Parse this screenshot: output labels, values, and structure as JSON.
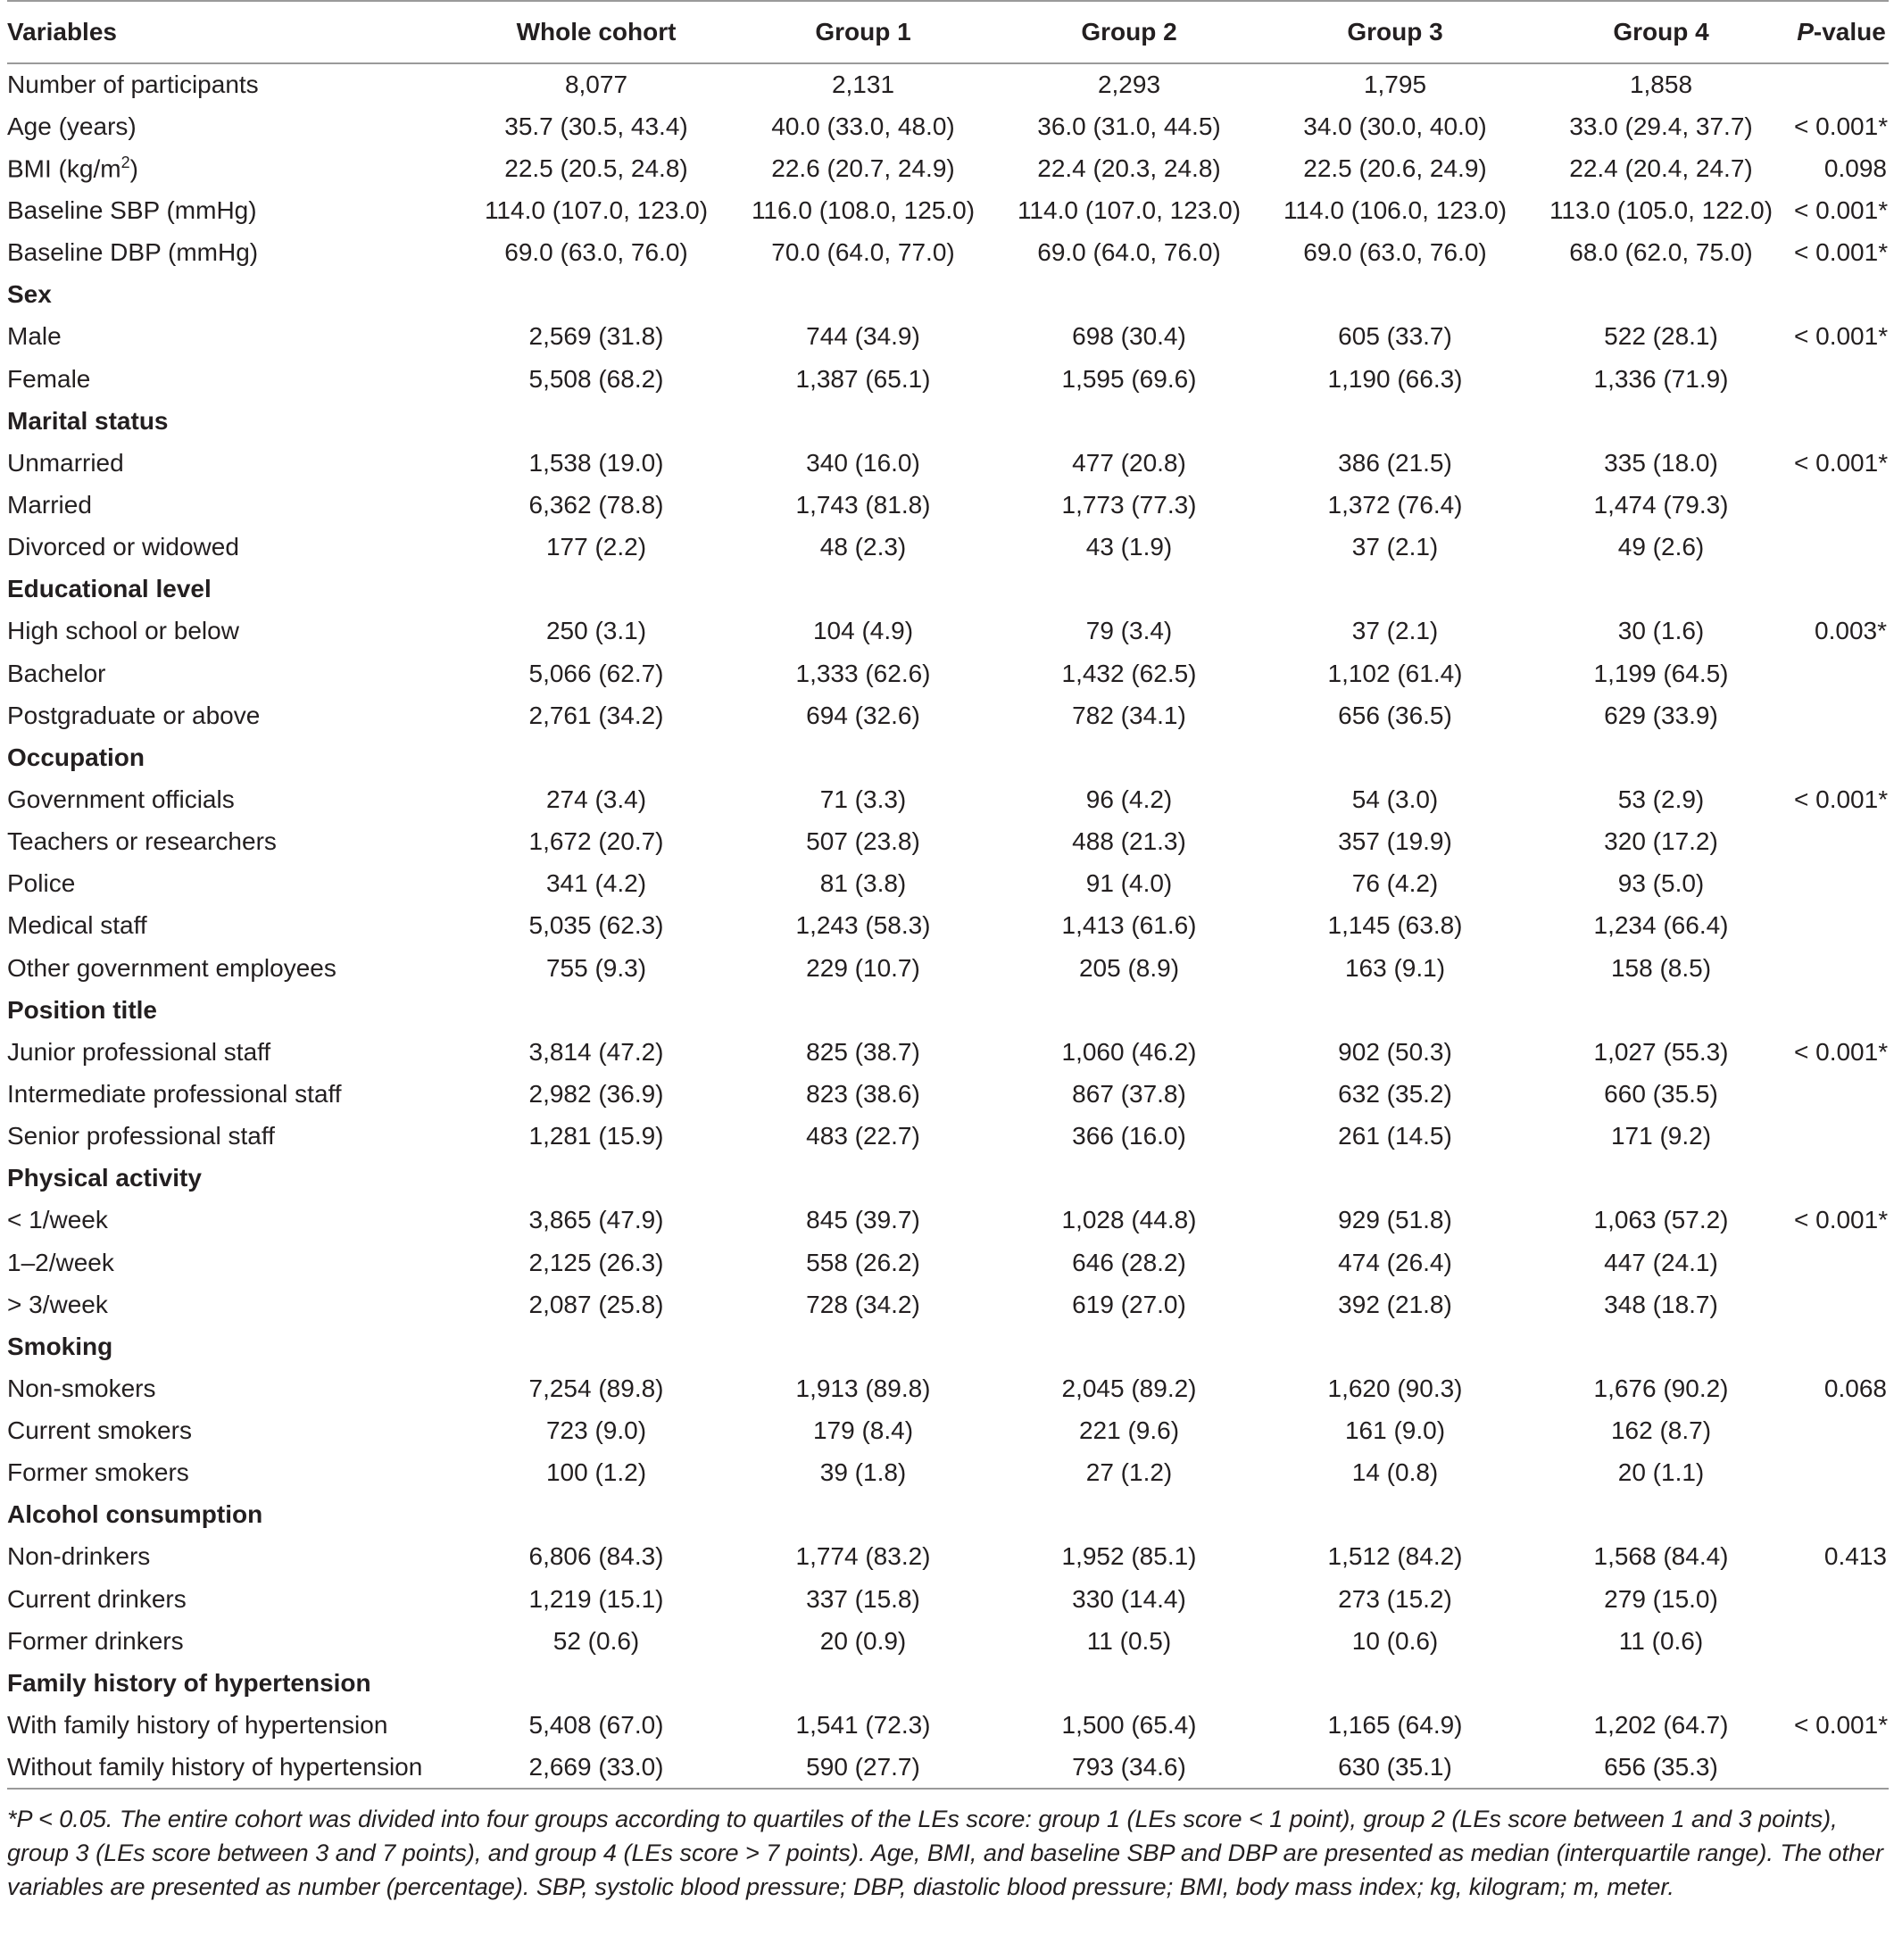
{
  "table": {
    "headers": [
      "Variables",
      "Whole cohort",
      "Group 1",
      "Group 2",
      "Group 3",
      "Group 4",
      "P-value"
    ],
    "rows": [
      {
        "type": "data",
        "label": "Number of participants",
        "values": [
          "8,077",
          "2,131",
          "2,293",
          "1,795",
          "1,858"
        ],
        "p": ""
      },
      {
        "type": "data",
        "label": "Age (years)",
        "values": [
          "35.7 (30.5, 43.4)",
          "40.0 (33.0, 48.0)",
          "36.0 (31.0, 44.5)",
          "34.0 (30.0, 40.0)",
          "33.0 (29.4, 37.7)"
        ],
        "p": "< 0.001*"
      },
      {
        "type": "data",
        "label": "BMI (kg/m2)",
        "values": [
          "22.5 (20.5, 24.8)",
          "22.6 (20.7, 24.9)",
          "22.4 (20.3, 24.8)",
          "22.5 (20.6, 24.9)",
          "22.4 (20.4, 24.7)"
        ],
        "p": "0.098"
      },
      {
        "type": "data",
        "label": "Baseline SBP (mmHg)",
        "values": [
          "114.0 (107.0, 123.0)",
          "116.0 (108.0, 125.0)",
          "114.0 (107.0, 123.0)",
          "114.0 (106.0, 123.0)",
          "113.0 (105.0, 122.0)"
        ],
        "p": "< 0.001*"
      },
      {
        "type": "data",
        "label": "Baseline DBP (mmHg)",
        "values": [
          "69.0 (63.0, 76.0)",
          "70.0 (64.0, 77.0)",
          "69.0 (64.0, 76.0)",
          "69.0 (63.0, 76.0)",
          "68.0 (62.0, 75.0)"
        ],
        "p": "< 0.001*"
      },
      {
        "type": "section",
        "label": "Sex",
        "values": [
          "",
          "",
          "",
          "",
          ""
        ],
        "p": ""
      },
      {
        "type": "data",
        "label": "Male",
        "values": [
          "2,569 (31.8)",
          "744 (34.9)",
          "698 (30.4)",
          "605 (33.7)",
          "522 (28.1)"
        ],
        "p": "< 0.001*"
      },
      {
        "type": "data",
        "label": "Female",
        "values": [
          "5,508 (68.2)",
          "1,387 (65.1)",
          "1,595 (69.6)",
          "1,190 (66.3)",
          "1,336 (71.9)"
        ],
        "p": ""
      },
      {
        "type": "section",
        "label": "Marital status",
        "values": [
          "",
          "",
          "",
          "",
          ""
        ],
        "p": ""
      },
      {
        "type": "data",
        "label": "Unmarried",
        "values": [
          "1,538 (19.0)",
          "340 (16.0)",
          "477 (20.8)",
          "386 (21.5)",
          "335 (18.0)"
        ],
        "p": "< 0.001*"
      },
      {
        "type": "data",
        "label": "Married",
        "values": [
          "6,362 (78.8)",
          "1,743 (81.8)",
          "1,773 (77.3)",
          "1,372 (76.4)",
          "1,474 (79.3)"
        ],
        "p": ""
      },
      {
        "type": "data",
        "label": "Divorced or widowed",
        "values": [
          "177 (2.2)",
          "48 (2.3)",
          "43 (1.9)",
          "37 (2.1)",
          "49 (2.6)"
        ],
        "p": ""
      },
      {
        "type": "section",
        "label": "Educational level",
        "values": [
          "",
          "",
          "",
          "",
          ""
        ],
        "p": ""
      },
      {
        "type": "data",
        "label": "High school or below",
        "values": [
          "250 (3.1)",
          "104 (4.9)",
          "79 (3.4)",
          "37 (2.1)",
          "30 (1.6)"
        ],
        "p": "0.003*"
      },
      {
        "type": "data",
        "label": "Bachelor",
        "values": [
          "5,066 (62.7)",
          "1,333 (62.6)",
          "1,432 (62.5)",
          "1,102 (61.4)",
          "1,199 (64.5)"
        ],
        "p": ""
      },
      {
        "type": "data",
        "label": "Postgraduate or above",
        "values": [
          "2,761 (34.2)",
          "694 (32.6)",
          "782 (34.1)",
          "656 (36.5)",
          "629 (33.9)"
        ],
        "p": ""
      },
      {
        "type": "section",
        "label": "Occupation",
        "values": [
          "",
          "",
          "",
          "",
          ""
        ],
        "p": ""
      },
      {
        "type": "data",
        "label": "Government officials",
        "values": [
          "274 (3.4)",
          "71 (3.3)",
          "96 (4.2)",
          "54 (3.0)",
          "53 (2.9)"
        ],
        "p": "< 0.001*"
      },
      {
        "type": "data",
        "label": "Teachers or researchers",
        "values": [
          "1,672 (20.7)",
          "507 (23.8)",
          "488 (21.3)",
          "357 (19.9)",
          "320 (17.2)"
        ],
        "p": ""
      },
      {
        "type": "data",
        "label": "Police",
        "values": [
          "341 (4.2)",
          "81 (3.8)",
          "91 (4.0)",
          "76 (4.2)",
          "93 (5.0)"
        ],
        "p": ""
      },
      {
        "type": "data",
        "label": "Medical staff",
        "values": [
          "5,035 (62.3)",
          "1,243 (58.3)",
          "1,413 (61.6)",
          "1,145 (63.8)",
          "1,234 (66.4)"
        ],
        "p": ""
      },
      {
        "type": "data",
        "label": "Other government employees",
        "values": [
          "755 (9.3)",
          "229 (10.7)",
          "205 (8.9)",
          "163 (9.1)",
          "158 (8.5)"
        ],
        "p": ""
      },
      {
        "type": "section",
        "label": "Position title",
        "values": [
          "",
          "",
          "",
          "",
          ""
        ],
        "p": ""
      },
      {
        "type": "data",
        "label": "Junior professional staff",
        "values": [
          "3,814 (47.2)",
          "825 (38.7)",
          "1,060 (46.2)",
          "902 (50.3)",
          "1,027 (55.3)"
        ],
        "p": "< 0.001*"
      },
      {
        "type": "data",
        "label": "Intermediate professional staff",
        "values": [
          "2,982 (36.9)",
          "823 (38.6)",
          "867 (37.8)",
          "632 (35.2)",
          "660 (35.5)"
        ],
        "p": ""
      },
      {
        "type": "data",
        "label": "Senior professional staff",
        "values": [
          "1,281 (15.9)",
          "483 (22.7)",
          "366 (16.0)",
          "261 (14.5)",
          "171 (9.2)"
        ],
        "p": ""
      },
      {
        "type": "section",
        "label": "Physical activity",
        "values": [
          "",
          "",
          "",
          "",
          ""
        ],
        "p": ""
      },
      {
        "type": "data",
        "label": " < 1/week",
        "values": [
          "3,865 (47.9)",
          "845 (39.7)",
          "1,028 (44.8)",
          "929 (51.8)",
          "1,063 (57.2)"
        ],
        "p": "< 0.001*"
      },
      {
        "type": "data",
        "label": "1–2/week",
        "values": [
          "2,125 (26.3)",
          "558 (26.2)",
          "646 (28.2)",
          "474 (26.4)",
          "447 (24.1)"
        ],
        "p": ""
      },
      {
        "type": "data",
        "label": " > 3/week",
        "values": [
          "2,087 (25.8)",
          "728 (34.2)",
          "619 (27.0)",
          "392 (21.8)",
          "348 (18.7)"
        ],
        "p": ""
      },
      {
        "type": "section",
        "label": "Smoking",
        "values": [
          "",
          "",
          "",
          "",
          ""
        ],
        "p": ""
      },
      {
        "type": "data",
        "label": "Non-smokers",
        "values": [
          "7,254 (89.8)",
          "1,913 (89.8)",
          "2,045 (89.2)",
          "1,620 (90.3)",
          "1,676 (90.2)"
        ],
        "p": "0.068"
      },
      {
        "type": "data",
        "label": "Current smokers",
        "values": [
          "723 (9.0)",
          "179 (8.4)",
          "221 (9.6)",
          "161 (9.0)",
          "162 (8.7)"
        ],
        "p": ""
      },
      {
        "type": "data",
        "label": "Former smokers",
        "values": [
          "100 (1.2)",
          "39 (1.8)",
          "27 (1.2)",
          "14 (0.8)",
          "20 (1.1)"
        ],
        "p": ""
      },
      {
        "type": "section",
        "label": "Alcohol consumption",
        "values": [
          "",
          "",
          "",
          "",
          ""
        ],
        "p": ""
      },
      {
        "type": "data",
        "label": "Non-drinkers",
        "values": [
          "6,806 (84.3)",
          "1,774 (83.2)",
          "1,952 (85.1)",
          "1,512 (84.2)",
          "1,568 (84.4)"
        ],
        "p": "0.413"
      },
      {
        "type": "data",
        "label": "Current drinkers",
        "values": [
          "1,219 (15.1)",
          "337 (15.8)",
          "330 (14.4)",
          "273 (15.2)",
          "279 (15.0)"
        ],
        "p": ""
      },
      {
        "type": "data",
        "label": "Former drinkers",
        "values": [
          "52 (0.6)",
          "20 (0.9)",
          "11 (0.5)",
          "10 (0.6)",
          "11 (0.6)"
        ],
        "p": ""
      },
      {
        "type": "section",
        "label": "Family history of hypertension",
        "values": [
          "",
          "",
          "",
          "",
          ""
        ],
        "p": ""
      },
      {
        "type": "data",
        "label": "With family history of hypertension",
        "values": [
          "5,408 (67.0)",
          "1,541 (72.3)",
          "1,500 (65.4)",
          "1,165 (64.9)",
          "1,202 (64.7)"
        ],
        "p": "< 0.001*"
      },
      {
        "type": "data",
        "label": "Without family history of hypertension",
        "values": [
          "2,669 (33.0)",
          "590 (27.7)",
          "793 (34.6)",
          "630 (35.1)",
          "656 (35.3)"
        ],
        "p": ""
      }
    ]
  },
  "footnote": "*P < 0.05. The entire cohort was divided into four groups according to quartiles of the LEs score: group 1 (LEs score < 1 point), group 2 (LEs score between 1 and 3 points), group 3 (LEs score between 3 and 7 points), and group 4 (LEs score > 7 points). Age, BMI, and baseline SBP and DBP are presented as median (interquartile range). The other variables are presented as number (percentage). SBP, systolic blood pressure; DBP, diastolic blood pressure; BMI, body mass index; kg, kilogram; m, meter."
}
